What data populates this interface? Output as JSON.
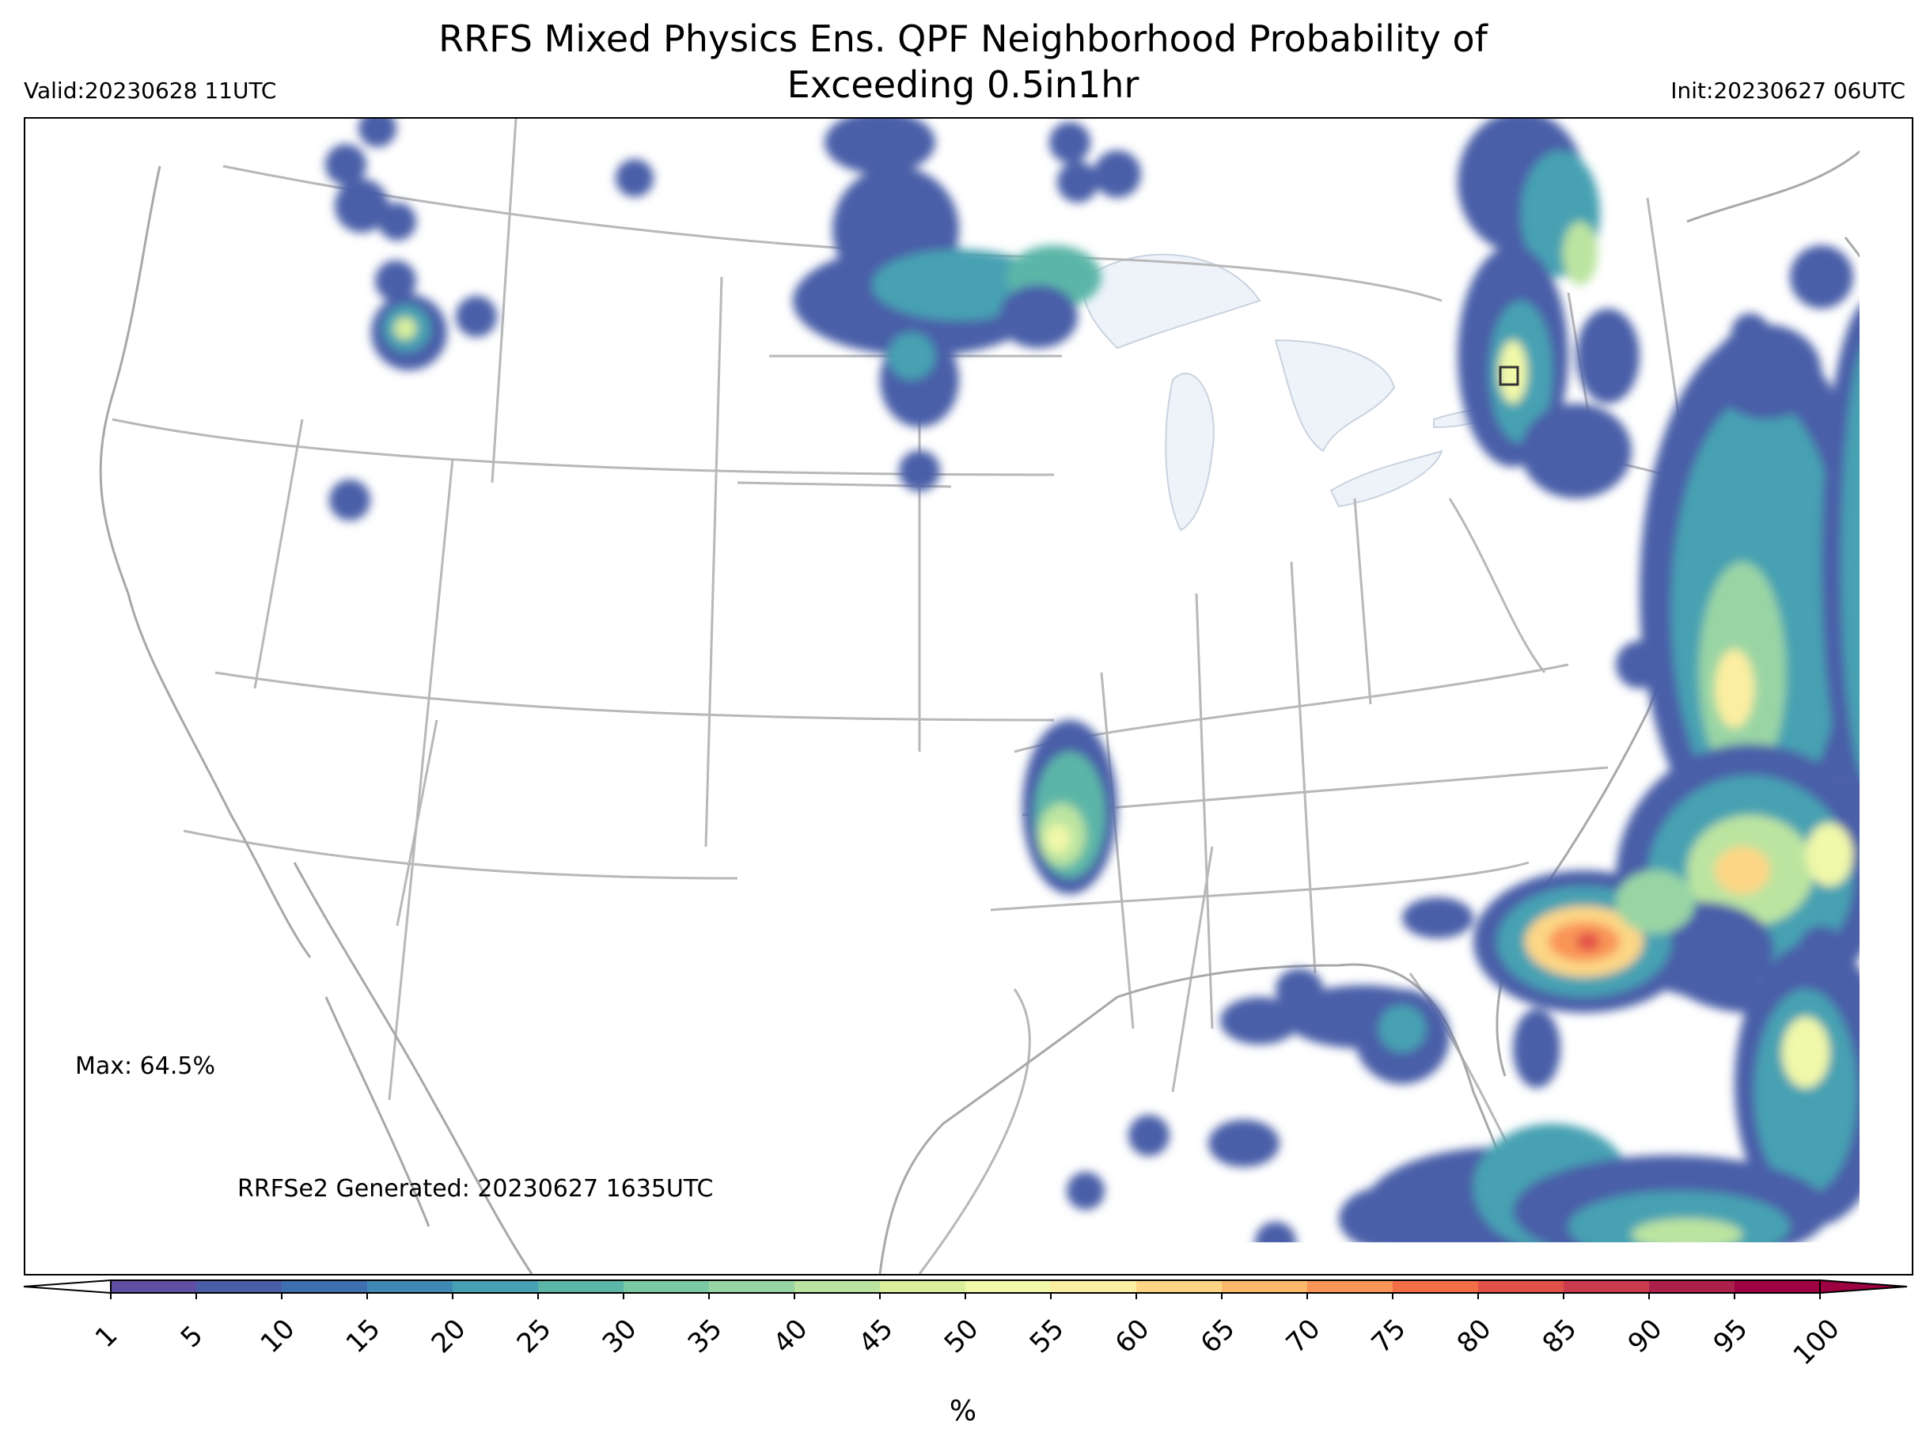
{
  "title_line1": "RRFS Mixed Physics Ens. QPF Neighborhood Probability of",
  "title_line2": "Exceeding 0.5in1hr",
  "valid_label": "Valid:20230628 11UTC",
  "init_label": "Init:20230627 06UTC",
  "max_label": "Max: 64.5%",
  "generated_label": "RRFSe2 Generated: 20230627 1635UTC",
  "colorbar": {
    "unit": "%",
    "ticks": [
      "1",
      "5",
      "10",
      "15",
      "20",
      "25",
      "30",
      "35",
      "40",
      "45",
      "50",
      "55",
      "60",
      "65",
      "70",
      "75",
      "80",
      "85",
      "90",
      "95",
      "100"
    ],
    "colors": [
      "#5e4fa2",
      "#4a5ea8",
      "#3e6fb0",
      "#3f89b6",
      "#46a1b2",
      "#5bb6a8",
      "#7ac9a4",
      "#99d5a4",
      "#bbe4a0",
      "#d9ef9b",
      "#f0f8a9",
      "#fbeea0",
      "#fdd685",
      "#fdb96a",
      "#f99556",
      "#f26e47",
      "#e25148",
      "#cb3a4d",
      "#ac204c",
      "#9e0142"
    ]
  },
  "icons": {
    "colorbar_extend_left": "triangle-left-icon",
    "colorbar_extend_right": "triangle-right-icon",
    "marker": "square-outline-icon"
  }
}
